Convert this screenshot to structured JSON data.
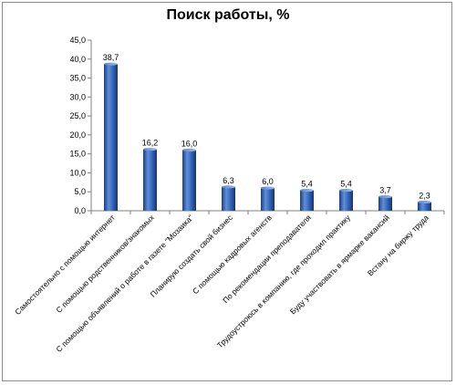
{
  "chart_data": {
    "type": "bar",
    "title": "Поиск работы, %",
    "xlabel": "",
    "ylabel": "",
    "ylim": [
      0,
      45
    ],
    "yticks": [
      "0,0",
      "5,0",
      "10,0",
      "15,0",
      "20,0",
      "25,0",
      "30,0",
      "35,0",
      "40,0",
      "45,0"
    ],
    "grid": false,
    "legend": "none",
    "bar_color": "#2e5fb0",
    "categories": [
      "Самостоятельно с помощью интернет",
      "С помощью родственников/знакомых",
      "С помощью объявлений о работе в газете \"Мозаика\"",
      "Планирую создать свой бизнес",
      "С помощью кадровых агенств",
      "По рекомендации преподавателя",
      "Трудоустроюсь в компанию, где проходил практику",
      "Буду участвовать в ярмарке вакансий",
      "Встану на биржу труда"
    ],
    "values": [
      38.7,
      16.2,
      16.0,
      6.3,
      6.0,
      5.4,
      5.4,
      3.7,
      2.3
    ],
    "data_labels": [
      "38,7",
      "16,2",
      "16,0",
      "6,3",
      "6,0",
      "5,4",
      "5,4",
      "3,7",
      "2,3"
    ]
  }
}
